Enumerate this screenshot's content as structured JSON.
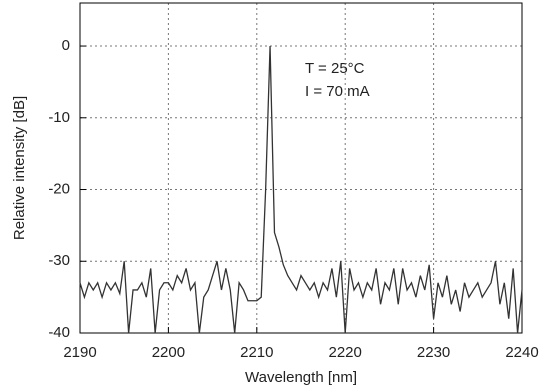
{
  "chart_data": {
    "type": "line",
    "xlabel": "Wavelength [nm]",
    "ylabel": "Relative intensity [dB]",
    "annotations": [
      "T = 25°C",
      "I = 70 mA"
    ],
    "x": [
      2190,
      2190.5,
      2191,
      2191.5,
      2192,
      2192.5,
      2193,
      2193.5,
      2194,
      2194.5,
      2195,
      2195.5,
      2196,
      2196.5,
      2197,
      2197.5,
      2198,
      2198.5,
      2199,
      2199.5,
      2200,
      2200.5,
      2201,
      2201.5,
      2202,
      2202.5,
      2203,
      2203.5,
      2204,
      2204.5,
      2205,
      2205.5,
      2206,
      2206.5,
      2207,
      2207.5,
      2208,
      2208.5,
      2209,
      2209.5,
      2210,
      2210.5,
      2211,
      2211.5,
      2212,
      2212.5,
      2213,
      2213.5,
      2214,
      2214.5,
      2215,
      2215.5,
      2216,
      2216.5,
      2217,
      2217.5,
      2218,
      2218.5,
      2219,
      2219.5,
      2220,
      2220.5,
      2221,
      2221.5,
      2222,
      2222.5,
      2223,
      2223.5,
      2224,
      2224.5,
      2225,
      2225.5,
      2226,
      2226.5,
      2227,
      2227.5,
      2228,
      2228.5,
      2229,
      2229.5,
      2230,
      2230.5,
      2231,
      2231.5,
      2232,
      2232.5,
      2233,
      2233.5,
      2234,
      2234.5,
      2235,
      2235.5,
      2236,
      2236.5,
      2237,
      2237.5,
      2238,
      2238.5,
      2239,
      2239.5,
      2240
    ],
    "values": [
      -33,
      -35,
      -33,
      -34,
      -33,
      -35,
      -33,
      -34,
      -33,
      -34.5,
      -30,
      -40,
      -34,
      -34,
      -33,
      -35,
      -31,
      -40,
      -34,
      -33,
      -33,
      -34,
      -32,
      -33,
      -31,
      -34,
      -33,
      -40,
      -35,
      -34,
      -32,
      -30,
      -34,
      -31,
      -34,
      -40,
      -33,
      -34,
      -35.5,
      -35.5,
      -35.5,
      -35,
      -20,
      0,
      -26,
      -28,
      -30.5,
      -32,
      -33,
      -34,
      -32,
      -33,
      -34,
      -33,
      -35,
      -33,
      -34,
      -31,
      -35,
      -30,
      -40,
      -31,
      -34,
      -33,
      -35,
      -33,
      -34,
      -31,
      -36,
      -33,
      -34,
      -31,
      -36,
      -31,
      -34,
      -33,
      -35,
      -32,
      -34,
      -30.5,
      -38,
      -33,
      -35,
      -32,
      -36,
      -34,
      -37,
      -33,
      -35,
      -34,
      -33,
      -35,
      -34,
      -33,
      -30,
      -36,
      -33,
      -38,
      -31,
      -40,
      -34
    ],
    "color": "#333333",
    "xlim": [
      2190,
      2240
    ],
    "ylim": [
      -40,
      6
    ],
    "xticks": [
      2190,
      2200,
      2210,
      2220,
      2230,
      2240
    ],
    "yticks": [
      -40,
      -30,
      -20,
      -10,
      0
    ],
    "grid": true
  }
}
